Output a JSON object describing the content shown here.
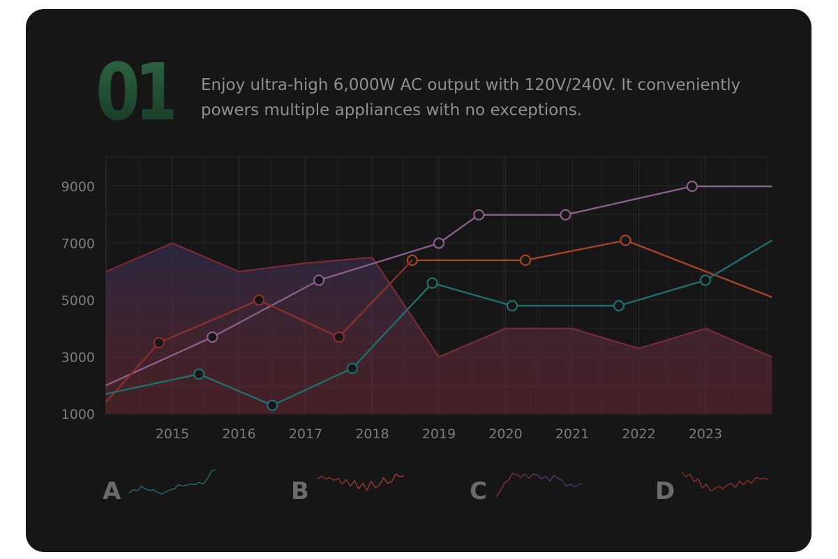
{
  "card": {
    "number": "01",
    "description": "Enjoy ultra-high 6,000W AC output with 120V/240V. It conveniently powers multiple appliances with no exceptions."
  },
  "colors": {
    "background": "#161616",
    "number_gradient": [
      "#2f6a46",
      "#163322"
    ],
    "area": "#7a2b36",
    "purple": "#8a5f8a",
    "orange": "#a6442a",
    "red": "#8a2f2f",
    "teal": "#1f6f6f"
  },
  "chart_data": {
    "type": "line",
    "xlim": [
      2014,
      2024
    ],
    "ylim": [
      1000,
      10000
    ],
    "x_ticks": [
      "2015",
      "2016",
      "2017",
      "2018",
      "2019",
      "2020",
      "2021",
      "2022",
      "2023"
    ],
    "y_ticks": [
      "1000",
      "3000",
      "5000",
      "7000",
      "9000"
    ],
    "grid": true,
    "area_series": {
      "x": [
        2014,
        2015,
        2016,
        2017,
        2018,
        2019,
        2020,
        2021,
        2022,
        2023,
        2024
      ],
      "values": [
        6000,
        7000,
        6000,
        6300,
        6500,
        3000,
        4000,
        4000,
        3300,
        4000,
        3000
      ]
    },
    "series": [
      {
        "color": "purple",
        "x": [
          2014,
          2015.6,
          2017.2,
          2019,
          2019.6,
          2020.9,
          2022.8,
          2024
        ],
        "values": [
          2000,
          3700,
          5700,
          7000,
          8000,
          8000,
          9000,
          9000
        ],
        "markers": [
          false,
          true,
          true,
          true,
          true,
          true,
          true,
          false
        ]
      },
      {
        "color": "orange",
        "x": [
          2018.6,
          2020.3,
          2021.8,
          2024
        ],
        "values": [
          6400,
          6400,
          7100,
          5100
        ],
        "markers": [
          true,
          true,
          true,
          false
        ]
      },
      {
        "color": "red",
        "x": [
          2014,
          2014.8,
          2016.3,
          2017.5,
          2018.6
        ],
        "values": [
          1400,
          3500,
          5000,
          3700,
          6400
        ],
        "markers": [
          false,
          true,
          true,
          true,
          false
        ]
      },
      {
        "color": "teal",
        "x": [
          2014,
          2015.4,
          2016.5,
          2017.7,
          2018.9,
          2020.1,
          2021.7,
          2023,
          2024
        ],
        "values": [
          1700,
          2400,
          1300,
          2600,
          5600,
          4800,
          4800,
          5700,
          7100
        ],
        "markers": [
          false,
          true,
          true,
          true,
          true,
          true,
          true,
          true,
          false
        ]
      }
    ]
  },
  "sparklines": [
    {
      "label": "A",
      "colors": [
        "#1f6f6f",
        "#1f6f6f"
      ],
      "values": [
        2,
        3,
        2.6,
        4,
        3.2,
        2.8,
        3,
        2.2,
        1.8,
        2.4,
        3,
        3.2,
        4.4,
        4,
        4.3,
        4.6,
        4.4,
        5,
        4.6,
        6,
        8.2,
        8.6
      ]
    },
    {
      "label": "B",
      "colors": [
        "#8a2f2f",
        "#a6442a"
      ],
      "values": [
        6,
        6.8,
        6,
        6.4,
        5.6,
        6.2,
        4.6,
        5.8,
        4,
        5.6,
        3.2,
        4.8,
        2.8,
        5.4,
        3.6,
        4.2,
        6.4,
        4.8,
        5.2,
        7.4,
        6.6,
        6.8
      ]
    },
    {
      "label": "C",
      "colors": [
        "#8a2f4a",
        "#3a3a7a"
      ],
      "values": [
        1,
        2.6,
        4.8,
        5.6,
        7.6,
        7.2,
        6.4,
        7.4,
        6.2,
        7.4,
        7.2,
        6,
        6.8,
        5.4,
        7,
        6.2,
        5.6,
        4,
        4.6,
        3.8,
        4.4,
        4.8
      ]
    },
    {
      "label": "D",
      "colors": [
        "#8a2f2f",
        "#8a2f2f"
      ],
      "values": [
        8,
        6.6,
        7.4,
        5.2,
        6,
        3.4,
        4.6,
        2.6,
        3.2,
        4,
        3.2,
        4.2,
        4.8,
        3.6,
        5.4,
        4.4,
        5.6,
        4.8,
        6.4,
        6,
        6.2,
        5.8
      ]
    }
  ]
}
